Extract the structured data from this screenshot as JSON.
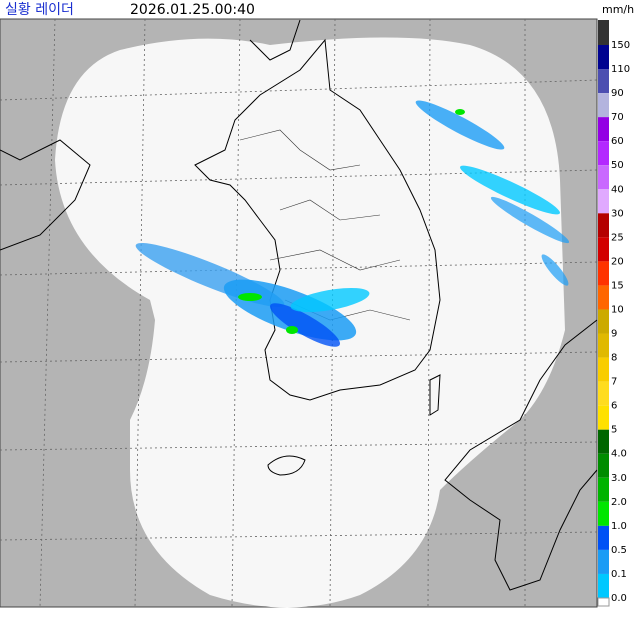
{
  "header": {
    "title": "실황 레이더",
    "timestamp": "2026.01.25.00:40",
    "unit": "mm/h"
  },
  "legend": {
    "labels": [
      "150",
      "110",
      "90",
      "70",
      "60",
      "50",
      "40",
      "30",
      "25",
      "20",
      "15",
      "10",
      "9",
      "8",
      "7",
      "6",
      "5",
      "4.0",
      "3.0",
      "2.0",
      "1.0",
      "0.5",
      "0.1",
      "0.0"
    ],
    "colors": [
      "#333333",
      "#000390",
      "#4c4eb1",
      "#b3b4de",
      "#9300e4",
      "#b329ff",
      "#c969ff",
      "#e0a9ff",
      "#b40000",
      "#d20000",
      "#ff3300",
      "#ff6600",
      "#ccaa00",
      "#e0b900",
      "#f9cd00",
      "#ffdc1f",
      "#ffe100",
      "#006600",
      "#008c00",
      "#00b300",
      "#00e600",
      "#0051f5",
      "#1b9cf5",
      "#00c8ff"
    ]
  }
}
